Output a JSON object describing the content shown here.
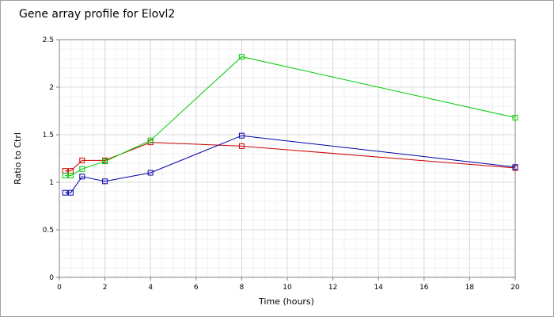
{
  "chart_data": {
    "type": "line",
    "title": "Gene array profile for Elovl2",
    "xlabel": "Time (hours)",
    "ylabel": "Ratio to Ctrl",
    "xlim": [
      0,
      20
    ],
    "ylim": [
      0,
      2.5
    ],
    "xticks": [
      0,
      2,
      4,
      6,
      8,
      10,
      12,
      14,
      16,
      18,
      20
    ],
    "yticks": [
      0,
      0.5,
      1,
      1.5,
      2,
      2.5
    ],
    "ytick_labels": [
      "0",
      "0.5",
      "1",
      "1.5",
      "2",
      "2.5"
    ],
    "grid": true,
    "legend": false,
    "series": [
      {
        "color": "#cc0000",
        "x": [
          0.25,
          0.5,
          1,
          2,
          4,
          8,
          20
        ],
        "y": [
          1.12,
          1.12,
          1.23,
          1.23,
          1.42,
          1.38,
          1.15
        ]
      },
      {
        "color": "#00cc00",
        "x": [
          0.25,
          0.5,
          1,
          2,
          4,
          8,
          20
        ],
        "y": [
          1.07,
          1.07,
          1.14,
          1.22,
          1.44,
          2.32,
          1.68
        ]
      },
      {
        "color": "#0000aa",
        "x": [
          0.25,
          0.5,
          1,
          2,
          4,
          8,
          20
        ],
        "y": [
          0.89,
          0.89,
          1.06,
          1.01,
          1.1,
          1.49,
          1.16
        ]
      }
    ]
  }
}
